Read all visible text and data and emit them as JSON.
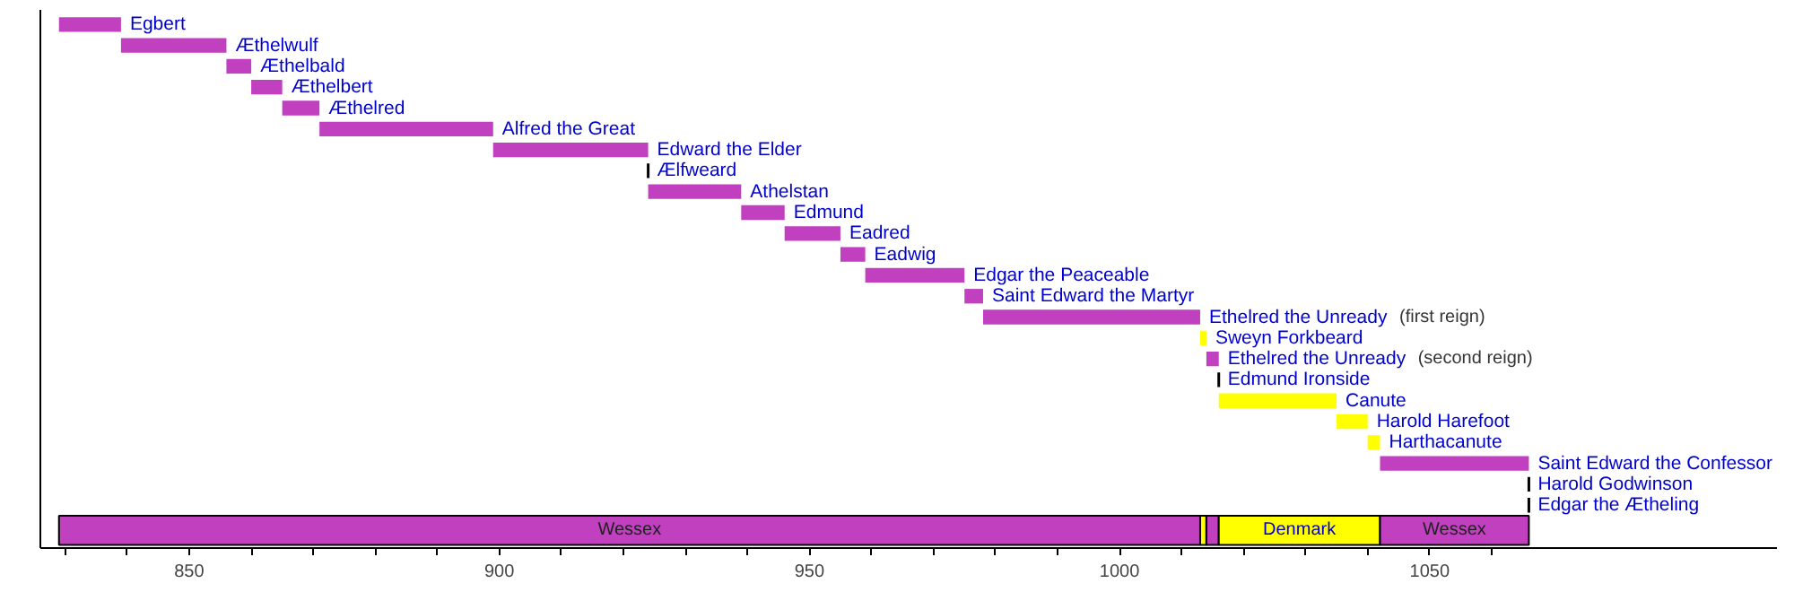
{
  "chart_data": {
    "type": "bar",
    "orientation": "horizontal",
    "categories": [
      "Egbert",
      "Æthelwulf",
      "Æthelbald",
      "Æthelbert",
      "Æthelred",
      "Alfred the Great",
      "Edward the Elder",
      "Ælfweard",
      "Athelstan",
      "Edmund",
      "Eadred",
      "Eadwig",
      "Edgar the Peaceable",
      "Saint Edward the Martyr",
      "Ethelred the Unready (first reign)",
      "Sweyn Forkbeard",
      "Ethelred the Unready (second reign)",
      "Edmund Ironside",
      "Canute",
      "Harold Harefoot",
      "Harthacanute",
      "Saint Edward the Confessor",
      "Harold Godwinson",
      "Edgar the Ætheling",
      null
    ],
    "series": [
      {
        "colors": [
          "#c040c0",
          "#c040c0",
          "#c040c0",
          "#c040c0",
          "#c040c0",
          "#c040c0",
          "#c040c0",
          "#000000",
          "#c040c0",
          "#c040c0",
          "#c040c0",
          "#c040c0",
          "#c040c0",
          "#c040c0",
          "#c040c0",
          "#ffff00",
          "#c040c0",
          "#000000",
          "#ffff00",
          "#ffff00",
          "#ffff00",
          "#c040c0",
          "#000000",
          "#000000",
          null
        ],
        "base": [
          829,
          839,
          856,
          860,
          865,
          871,
          899,
          924,
          924,
          939,
          946,
          955,
          959,
          975,
          978,
          1013,
          1014,
          1016,
          1016,
          1035,
          1040,
          1042,
          1066,
          1066,
          null
        ],
        "values": [
          10,
          17,
          4,
          5,
          6,
          28,
          25,
          0,
          15,
          7,
          9,
          4,
          16,
          3,
          35,
          1,
          2,
          0,
          19,
          5,
          2,
          24,
          0,
          0,
          null
        ]
      },
      {
        "name": "Wessex",
        "color": "#c040c0",
        "base": [
          null,
          null,
          null,
          null,
          null,
          null,
          null,
          null,
          null,
          null,
          null,
          null,
          null,
          null,
          null,
          null,
          null,
          null,
          null,
          null,
          null,
          null,
          null,
          null,
          829
        ],
        "values": [
          null,
          null,
          null,
          null,
          null,
          null,
          null,
          null,
          null,
          null,
          null,
          null,
          null,
          null,
          null,
          null,
          null,
          null,
          null,
          null,
          null,
          null,
          null,
          null,
          184
        ]
      },
      {
        "color": "#ffff00",
        "base": [
          null,
          null,
          null,
          null,
          null,
          null,
          null,
          null,
          null,
          null,
          null,
          null,
          null,
          null,
          null,
          null,
          null,
          null,
          null,
          null,
          null,
          null,
          null,
          null,
          1013
        ],
        "values": [
          null,
          null,
          null,
          null,
          null,
          null,
          null,
          null,
          null,
          null,
          null,
          null,
          null,
          null,
          null,
          null,
          null,
          null,
          null,
          null,
          null,
          null,
          null,
          null,
          1
        ]
      },
      {
        "color": "#c040c0",
        "base": [
          null,
          null,
          null,
          null,
          null,
          null,
          null,
          null,
          null,
          null,
          null,
          null,
          null,
          null,
          null,
          null,
          null,
          null,
          null,
          null,
          null,
          null,
          null,
          null,
          1014
        ],
        "values": [
          null,
          null,
          null,
          null,
          null,
          null,
          null,
          null,
          null,
          null,
          null,
          null,
          null,
          null,
          null,
          null,
          null,
          null,
          null,
          null,
          null,
          null,
          null,
          null,
          2
        ]
      },
      {
        "name": "Denmark",
        "color": "#ffff00",
        "base": [
          null,
          null,
          null,
          null,
          null,
          null,
          null,
          null,
          null,
          null,
          null,
          null,
          null,
          null,
          null,
          null,
          null,
          null,
          null,
          null,
          null,
          null,
          null,
          null,
          1016
        ],
        "values": [
          null,
          null,
          null,
          null,
          null,
          null,
          null,
          null,
          null,
          null,
          null,
          null,
          null,
          null,
          null,
          null,
          null,
          null,
          null,
          null,
          null,
          null,
          null,
          null,
          26
        ]
      },
      {
        "name": "Wessex",
        "color": "#c040c0",
        "base": [
          null,
          null,
          null,
          null,
          null,
          null,
          null,
          null,
          null,
          null,
          null,
          null,
          null,
          null,
          null,
          null,
          null,
          null,
          null,
          null,
          null,
          null,
          null,
          null,
          1042
        ],
        "values": [
          null,
          null,
          null,
          null,
          null,
          null,
          null,
          null,
          null,
          null,
          null,
          null,
          null,
          null,
          null,
          null,
          null,
          null,
          null,
          null,
          null,
          null,
          null,
          null,
          24
        ]
      }
    ],
    "xlim": [
      826,
      1106
    ],
    "xticks": [
      {
        "value": 830,
        "label": null
      },
      {
        "value": 840,
        "label": null
      },
      850,
      {
        "value": 860,
        "label": null
      },
      {
        "value": 870,
        "label": null
      },
      {
        "value": 880,
        "label": null
      },
      {
        "value": 890,
        "label": null
      },
      900,
      {
        "value": 910,
        "label": null
      },
      {
        "value": 920,
        "label": null
      },
      {
        "value": 930,
        "label": null
      },
      {
        "value": 940,
        "label": null
      },
      950,
      {
        "value": 960,
        "label": null
      },
      {
        "value": 970,
        "label": null
      },
      {
        "value": 980,
        "label": null
      },
      {
        "value": 990,
        "label": null
      },
      1000,
      {
        "value": 1010,
        "label": null
      },
      {
        "value": 1020,
        "label": null
      },
      {
        "value": 1030,
        "label": null
      },
      {
        "value": 1040,
        "label": null
      },
      1050,
      {
        "value": 1060,
        "label": null
      }
    ],
    "tick_labels": "x",
    "grid": false
  }
}
